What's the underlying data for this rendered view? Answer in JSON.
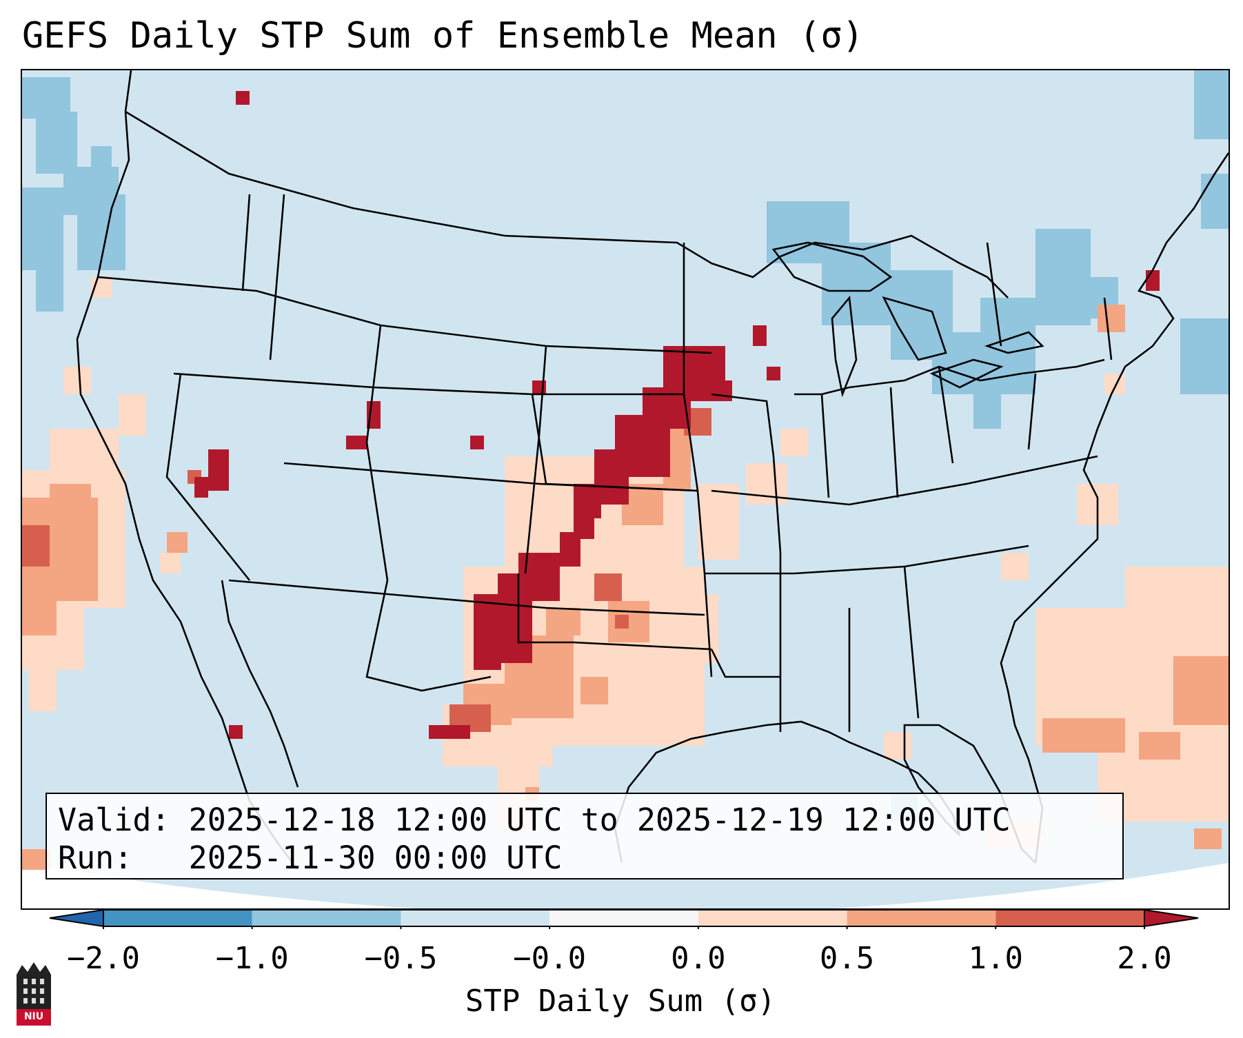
{
  "title": "GEFS Daily STP Sum of Ensemble Mean (σ)",
  "info": {
    "valid_line": "Valid: 2025-12-18 12:00 UTC to 2025-12-19 12:00 UTC",
    "run_line": "Run:   2025-11-30 00:00 UTC"
  },
  "colorbar": {
    "label": "STP Daily Sum (σ)",
    "ticks": [
      "−2.0",
      "−1.0",
      "−0.5",
      "−0.0",
      "0.0",
      "0.5",
      "1.0",
      "2.0"
    ],
    "colors": [
      "#4393c3",
      "#92c5de",
      "#d1e5f0",
      "#f7f7f7",
      "#fddbc7",
      "#f4a582",
      "#d6604d",
      "#b2182b"
    ],
    "under_color": "#2166ac",
    "over_color": "#b2182b"
  },
  "map": {
    "background_color": "#d1e5f0",
    "extent": "CONUS",
    "anomaly_regions": [
      {
        "name": "Plains corridor from west Texas to Iowa",
        "category": 2.0
      },
      {
        "name": "Kansas-Oklahoma-Texas band",
        "category": 1.0
      },
      {
        "name": "Central/southern Plains and Texas",
        "category": 0.5
      },
      {
        "name": "Eastern Pacific off California",
        "category": 0.5
      },
      {
        "name": "Western Atlantic and Caribbean",
        "category": 0.5
      },
      {
        "name": "Great Lakes and Northeast",
        "category": -0.5
      },
      {
        "name": "Northeast Pacific",
        "category": -1.0
      }
    ]
  },
  "logo": {
    "text": "NIU"
  }
}
